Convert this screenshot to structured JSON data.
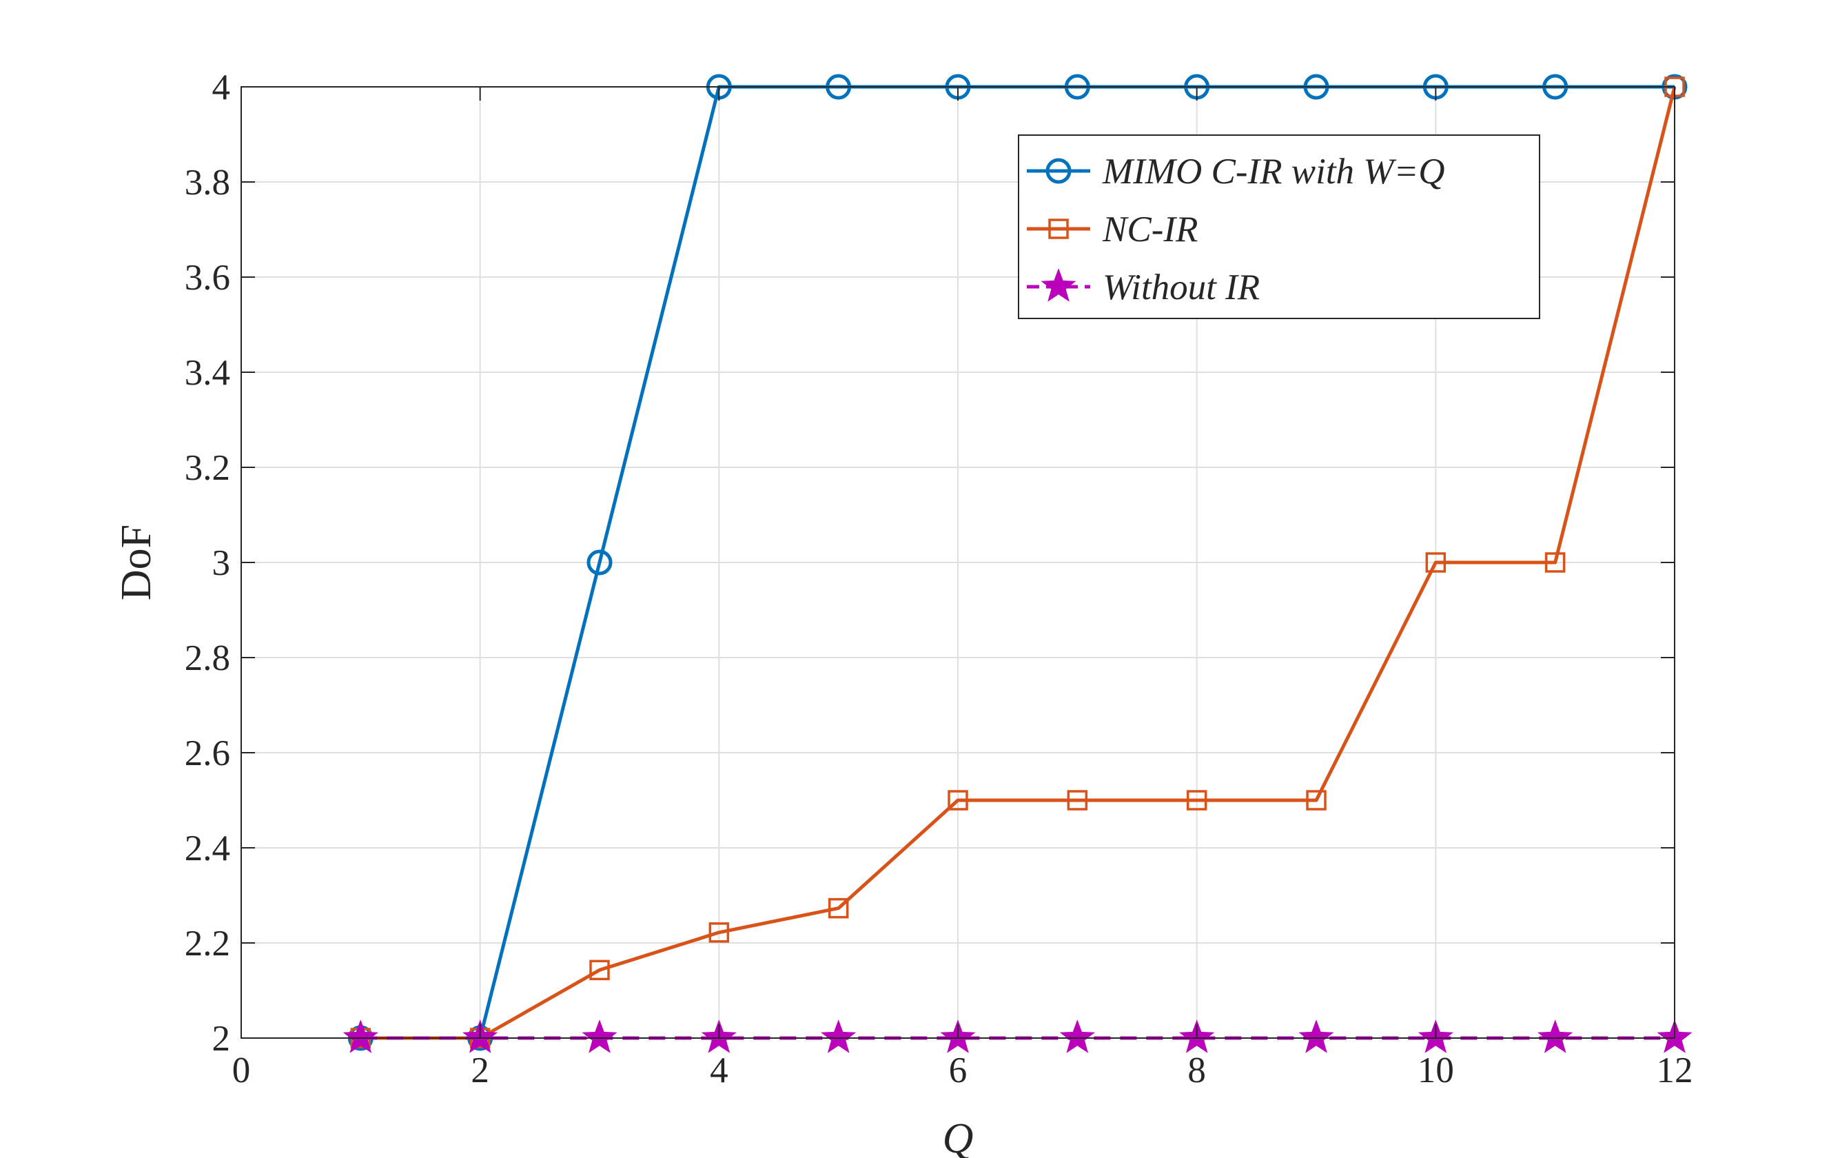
{
  "chart_data": {
    "type": "line",
    "xlabel": "Q",
    "ylabel": "DoF",
    "xlim": [
      0,
      12
    ],
    "ylim": [
      2,
      4
    ],
    "xticks": [
      0,
      2,
      4,
      6,
      8,
      10,
      12
    ],
    "yticks": [
      2,
      2.2,
      2.4,
      2.6,
      2.8,
      3,
      3.2,
      3.4,
      3.6,
      3.8,
      4
    ],
    "xtick_labels": [
      "0",
      "2",
      "4",
      "6",
      "8",
      "10",
      "12"
    ],
    "ytick_labels": [
      "2",
      "2.2",
      "2.4",
      "2.6",
      "2.8",
      "3",
      "3.2",
      "3.4",
      "3.6",
      "3.8",
      "4"
    ],
    "grid": true,
    "legend_position": "top-right",
    "x": [
      1,
      2,
      3,
      4,
      5,
      6,
      7,
      8,
      9,
      10,
      11,
      12
    ],
    "series": [
      {
        "name": "MIMO C-IR with W=Q",
        "color": "#0072BD",
        "marker": "circle",
        "line_style": "solid",
        "values": [
          2,
          2,
          3,
          4,
          4,
          4,
          4,
          4,
          4,
          4,
          4,
          4
        ]
      },
      {
        "name": "NC-IR",
        "color": "#D95319",
        "marker": "square",
        "line_style": "solid",
        "values": [
          2,
          2,
          2.143,
          2.222,
          2.273,
          2.5,
          2.5,
          2.5,
          2.5,
          3,
          3,
          4
        ]
      },
      {
        "name": "Without IR",
        "color": "#BB00BB",
        "marker": "star",
        "line_style": "dashed",
        "values": [
          2,
          2,
          2,
          2,
          2,
          2,
          2,
          2,
          2,
          2,
          2,
          2
        ]
      }
    ]
  }
}
